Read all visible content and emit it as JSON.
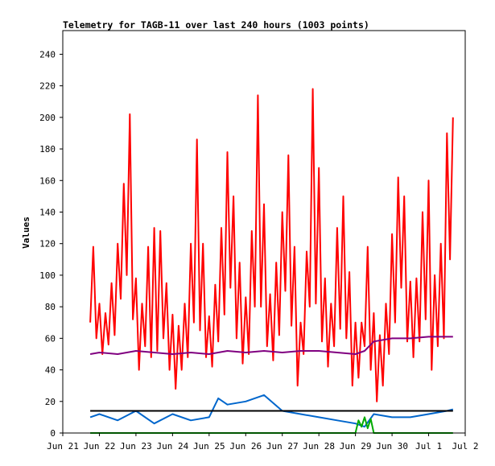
{
  "chart_data": {
    "type": "line",
    "title": "Telemetry for TAGB-11 over last 240 hours (1003 points)",
    "xlabel": "",
    "ylabel": "Values",
    "x_tick_labels": [
      "Jun 21",
      "Jun 22",
      "Jun 23",
      "Jun 24",
      "Jun 25",
      "Jun 26",
      "Jun 27",
      "Jun 28",
      "Jun 29",
      "Jun 30",
      "Jul 1",
      "Jul 2"
    ],
    "xlim": [
      "Jun 21",
      "Jul 2"
    ],
    "ylim": [
      0,
      255
    ],
    "y_ticks": [
      0,
      20,
      40,
      60,
      80,
      100,
      120,
      140,
      160,
      180,
      200,
      220,
      240
    ],
    "grid": false,
    "legend": "none",
    "series": [
      {
        "color": "#ff0000",
        "x": [
          "Jun 21 18:00",
          "Jun 21 20:00",
          "Jun 21 22:00",
          "Jun 22 00:00",
          "Jun 22 02:00",
          "Jun 22 04:00",
          "Jun 22 06:00",
          "Jun 22 08:00",
          "Jun 22 10:00",
          "Jun 22 12:00",
          "Jun 22 14:00",
          "Jun 22 16:00",
          "Jun 22 18:00",
          "Jun 22 20:00",
          "Jun 22 22:00",
          "Jun 23 00:00",
          "Jun 23 02:00",
          "Jun 23 04:00",
          "Jun 23 06:00",
          "Jun 23 08:00",
          "Jun 23 10:00",
          "Jun 23 12:00",
          "Jun 23 14:00",
          "Jun 23 16:00",
          "Jun 23 18:00",
          "Jun 23 20:00",
          "Jun 23 22:00",
          "Jun 24 00:00",
          "Jun 24 02:00",
          "Jun 24 04:00",
          "Jun 24 06:00",
          "Jun 24 08:00",
          "Jun 24 10:00",
          "Jun 24 12:00",
          "Jun 24 14:00",
          "Jun 24 16:00",
          "Jun 24 18:00",
          "Jun 24 20:00",
          "Jun 24 22:00",
          "Jun 25 00:00",
          "Jun 25 02:00",
          "Jun 25 04:00",
          "Jun 25 06:00",
          "Jun 25 08:00",
          "Jun 25 10:00",
          "Jun 25 12:00",
          "Jun 25 14:00",
          "Jun 25 16:00",
          "Jun 25 18:00",
          "Jun 25 20:00",
          "Jun 25 22:00",
          "Jun 26 00:00",
          "Jun 26 02:00",
          "Jun 26 04:00",
          "Jun 26 06:00",
          "Jun 26 08:00",
          "Jun 26 10:00",
          "Jun 26 12:00",
          "Jun 26 14:00",
          "Jun 26 16:00",
          "Jun 26 18:00",
          "Jun 26 20:00",
          "Jun 26 22:00",
          "Jun 27 00:00",
          "Jun 27 02:00",
          "Jun 27 04:00",
          "Jun 27 06:00",
          "Jun 27 08:00",
          "Jun 27 10:00",
          "Jun 27 12:00",
          "Jun 27 14:00",
          "Jun 27 16:00",
          "Jun 27 18:00",
          "Jun 27 20:00",
          "Jun 27 22:00",
          "Jun 28 00:00",
          "Jun 28 02:00",
          "Jun 28 04:00",
          "Jun 28 06:00",
          "Jun 28 08:00",
          "Jun 28 10:00",
          "Jun 28 12:00",
          "Jun 28 14:00",
          "Jun 28 16:00",
          "Jun 28 18:00",
          "Jun 28 20:00",
          "Jun 28 22:00",
          "Jun 29 00:00",
          "Jun 29 02:00",
          "Jun 29 04:00",
          "Jun 29 06:00",
          "Jun 29 08:00",
          "Jun 29 10:00",
          "Jun 29 12:00",
          "Jun 29 14:00",
          "Jun 29 16:00",
          "Jun 29 18:00",
          "Jun 29 20:00",
          "Jun 29 22:00",
          "Jun 30 00:00",
          "Jun 30 02:00",
          "Jun 30 04:00",
          "Jun 30 06:00",
          "Jun 30 08:00",
          "Jun 30 10:00",
          "Jun 30 12:00",
          "Jun 30 14:00",
          "Jun 30 16:00",
          "Jun 30 18:00",
          "Jun 30 20:00",
          "Jun 30 22:00",
          "Jul 1 00:00",
          "Jul 1 02:00",
          "Jul 1 04:00",
          "Jul 1 06:00",
          "Jul 1 08:00",
          "Jul 1 10:00",
          "Jul 1 12:00",
          "Jul 1 14:00",
          "Jul 1 16:00"
        ],
        "y": [
          70,
          118,
          60,
          82,
          50,
          76,
          56,
          95,
          62,
          120,
          85,
          158,
          100,
          202,
          72,
          98,
          40,
          82,
          55,
          118,
          48,
          130,
          52,
          128,
          60,
          95,
          40,
          75,
          28,
          68,
          40,
          82,
          48,
          120,
          70,
          186,
          65,
          120,
          48,
          74,
          42,
          94,
          58,
          130,
          75,
          178,
          92,
          150,
          60,
          108,
          44,
          86,
          50,
          128,
          80,
          214,
          80,
          145,
          55,
          88,
          46,
          108,
          62,
          140,
          90,
          176,
          68,
          118,
          30,
          70,
          50,
          115,
          80,
          218,
          82,
          168,
          58,
          98,
          42,
          82,
          55,
          130,
          66,
          150,
          60,
          102,
          30,
          70,
          35,
          70,
          55,
          118,
          40,
          76,
          20,
          62,
          30,
          82,
          50,
          126,
          70,
          162,
          92,
          150,
          58,
          96,
          48,
          98,
          58,
          140,
          72,
          160,
          40,
          100,
          55,
          120,
          60,
          190,
          110,
          200
        ]
      },
      {
        "color": "#800080",
        "x": [
          "Jun 21 18:00",
          "Jun 22 00:00",
          "Jun 22 12:00",
          "Jun 23 00:00",
          "Jun 23 12:00",
          "Jun 24 00:00",
          "Jun 24 12:00",
          "Jun 25 00:00",
          "Jun 25 12:00",
          "Jun 26 00:00",
          "Jun 26 12:00",
          "Jun 27 00:00",
          "Jun 27 12:00",
          "Jun 28 00:00",
          "Jun 28 12:00",
          "Jun 29 00:00",
          "Jun 29 06:00",
          "Jun 29 12:00",
          "Jun 30 00:00",
          "Jun 30 12:00",
          "Jul 1 00:00",
          "Jul 1 12:00",
          "Jul 1 16:00"
        ],
        "y": [
          50,
          51,
          50,
          52,
          51,
          50,
          51,
          50,
          52,
          51,
          52,
          51,
          52,
          52,
          51,
          50,
          52,
          58,
          60,
          60,
          61,
          61,
          61
        ]
      },
      {
        "color": "#0066cc",
        "x": [
          "Jun 21 18:00",
          "Jun 22 00:00",
          "Jun 22 12:00",
          "Jun 23 00:00",
          "Jun 23 12:00",
          "Jun 24 00:00",
          "Jun 24 12:00",
          "Jun 25 00:00",
          "Jun 25 06:00",
          "Jun 25 12:00",
          "Jun 26 00:00",
          "Jun 26 12:00",
          "Jun 27 00:00",
          "Jun 27 12:00",
          "Jun 28 00:00",
          "Jun 28 12:00",
          "Jun 29 00:00",
          "Jun 29 06:00",
          "Jun 29 12:00",
          "Jun 30 00:00",
          "Jun 30 12:00",
          "Jul 1 00:00",
          "Jul 1 12:00",
          "Jul 1 16:00"
        ],
        "y": [
          10,
          12,
          8,
          14,
          6,
          12,
          8,
          10,
          22,
          18,
          20,
          24,
          14,
          12,
          10,
          8,
          6,
          4,
          12,
          10,
          10,
          12,
          14,
          15
        ]
      },
      {
        "color": "#000000",
        "x": [
          "Jun 21 18:00",
          "Jul 1 16:00"
        ],
        "y": [
          14,
          14
        ]
      },
      {
        "color": "#00aa00",
        "x": [
          "Jun 21 18:00",
          "Jun 29 00:00",
          "Jun 29 02:00",
          "Jun 29 04:00",
          "Jun 29 06:00",
          "Jun 29 08:00",
          "Jun 29 10:00",
          "Jun 29 12:00",
          "Jul 1 16:00"
        ],
        "y": [
          0,
          0,
          8,
          4,
          10,
          3,
          9,
          0,
          0
        ]
      }
    ]
  }
}
